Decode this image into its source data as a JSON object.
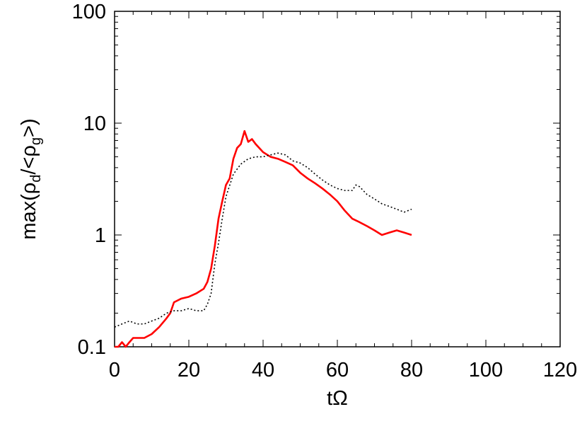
{
  "chart_data": {
    "type": "line",
    "xlabel": "tΩ",
    "ylabel": {
      "prefix": "max(ρ",
      "sub1": "d",
      "middle": "/<ρ",
      "sub2": "g",
      "suffix": ">)"
    },
    "xlim": [
      0,
      120
    ],
    "ylim": [
      0.1,
      100
    ],
    "y_scale": "log",
    "grid": false,
    "x_ticks": [
      0,
      20,
      40,
      60,
      80,
      100,
      120
    ],
    "x_tick_labels": [
      "0",
      "20",
      "40",
      "60",
      "80",
      "100",
      "120"
    ],
    "y_ticks": [
      0.1,
      1,
      10,
      100
    ],
    "y_tick_labels": [
      "0.1",
      "1",
      "10",
      "100"
    ],
    "series": [
      {
        "color": "#ff0000",
        "style": "solid",
        "x": [
          0,
          1,
          2,
          3,
          4,
          5,
          6,
          8,
          10,
          12,
          14,
          15,
          16,
          18,
          20,
          22,
          24,
          25,
          26,
          27,
          28,
          29,
          30,
          31,
          32,
          33,
          34,
          35,
          36,
          37,
          38,
          40,
          42,
          44,
          46,
          48,
          50,
          52,
          54,
          56,
          58,
          60,
          62,
          64,
          66,
          68,
          70,
          72,
          74,
          76,
          78,
          80
        ],
        "y": [
          0.1,
          0.1,
          0.11,
          0.1,
          0.11,
          0.12,
          0.12,
          0.12,
          0.13,
          0.15,
          0.18,
          0.2,
          0.25,
          0.27,
          0.28,
          0.3,
          0.33,
          0.38,
          0.5,
          0.8,
          1.4,
          2.0,
          2.8,
          3.2,
          4.8,
          6.0,
          6.5,
          8.5,
          6.8,
          7.2,
          6.5,
          5.5,
          5.0,
          4.8,
          4.5,
          4.2,
          3.6,
          3.2,
          2.9,
          2.6,
          2.3,
          2.0,
          1.65,
          1.4,
          1.3,
          1.2,
          1.1,
          1.0,
          1.05,
          1.1,
          1.05,
          1.0
        ]
      },
      {
        "color": "#000000",
        "style": "dotted",
        "x": [
          0,
          2,
          4,
          6,
          8,
          10,
          12,
          14,
          16,
          18,
          20,
          22,
          24,
          25,
          26,
          27,
          28,
          29,
          30,
          32,
          34,
          36,
          38,
          40,
          42,
          44,
          46,
          48,
          50,
          52,
          54,
          56,
          58,
          60,
          62,
          64,
          65,
          66,
          68,
          70,
          72,
          74,
          76,
          78,
          80
        ],
        "y": [
          0.15,
          0.16,
          0.17,
          0.16,
          0.16,
          0.17,
          0.18,
          0.2,
          0.21,
          0.21,
          0.22,
          0.21,
          0.21,
          0.24,
          0.3,
          0.55,
          0.85,
          1.4,
          2.2,
          3.5,
          4.3,
          4.8,
          5.0,
          5.0,
          5.2,
          5.4,
          5.2,
          4.6,
          4.4,
          4.0,
          3.5,
          3.1,
          2.8,
          2.6,
          2.5,
          2.5,
          2.8,
          2.7,
          2.3,
          2.1,
          1.9,
          1.8,
          1.7,
          1.6,
          1.7
        ]
      }
    ]
  }
}
